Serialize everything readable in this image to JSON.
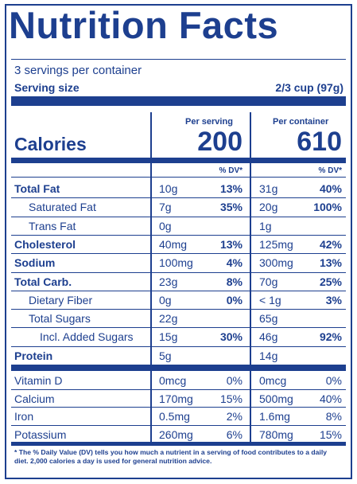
{
  "title": "Nutrition Facts",
  "servings_per_container": "3 servings per container",
  "serving_size_label": "Serving size",
  "serving_size_value": "2/3 cup (97g)",
  "calories_label": "Calories",
  "per_serving_label": "Per serving",
  "per_container_label": "Per container",
  "calories_per_serving": "200",
  "calories_per_container": "610",
  "dv_header": "% DV*",
  "nutrients": [
    {
      "name": "Total Fat",
      "bold": true,
      "indent": 0,
      "serving_amt": "10g",
      "serving_dv": "13%",
      "container_amt": "31g",
      "container_dv": "40%"
    },
    {
      "name": "Saturated Fat",
      "bold": false,
      "indent": 1,
      "serving_amt": "7g",
      "serving_dv": "35%",
      "container_amt": "20g",
      "container_dv": "100%"
    },
    {
      "name": "Trans Fat",
      "bold": false,
      "indent": 1,
      "serving_amt": "0g",
      "serving_dv": "",
      "container_amt": "1g",
      "container_dv": ""
    },
    {
      "name": "Cholesterol",
      "bold": true,
      "indent": 0,
      "serving_amt": "40mg",
      "serving_dv": "13%",
      "container_amt": "125mg",
      "container_dv": "42%"
    },
    {
      "name": "Sodium",
      "bold": true,
      "indent": 0,
      "serving_amt": "100mg",
      "serving_dv": "4%",
      "container_amt": "300mg",
      "container_dv": "13%"
    },
    {
      "name": "Total Carb.",
      "bold": true,
      "indent": 0,
      "serving_amt": "23g",
      "serving_dv": "8%",
      "container_amt": "70g",
      "container_dv": "25%"
    },
    {
      "name": "Dietary Fiber",
      "bold": false,
      "indent": 1,
      "serving_amt": "0g",
      "serving_dv": "0%",
      "container_amt": "< 1g",
      "container_dv": "3%"
    },
    {
      "name": "Total Sugars",
      "bold": false,
      "indent": 1,
      "serving_amt": "22g",
      "serving_dv": "",
      "container_amt": "65g",
      "container_dv": ""
    },
    {
      "name": "Incl. Added Sugars",
      "bold": false,
      "indent": 2,
      "serving_amt": "15g",
      "serving_dv": "30%",
      "container_amt": "46g",
      "container_dv": "92%"
    },
    {
      "name": "Protein",
      "bold": true,
      "indent": 0,
      "serving_amt": "5g",
      "serving_dv": "",
      "container_amt": "14g",
      "container_dv": ""
    }
  ],
  "vitamins": [
    {
      "name": "Vitamin D",
      "serving_amt": "0mcg",
      "serving_dv": "0%",
      "container_amt": "0mcg",
      "container_dv": "0%"
    },
    {
      "name": "Calcium",
      "serving_amt": "170mg",
      "serving_dv": "15%",
      "container_amt": "500mg",
      "container_dv": "40%"
    },
    {
      "name": "Iron",
      "serving_amt": "0.5mg",
      "serving_dv": "2%",
      "container_amt": "1.6mg",
      "container_dv": "8%"
    },
    {
      "name": "Potassium",
      "serving_amt": "260mg",
      "serving_dv": "6%",
      "container_amt": "780mg",
      "container_dv": "15%"
    }
  ],
  "footnote": "* The % Daily Value (DV) tells you how much a nutrient in a serving of food contributes to a daily diet. 2,000 calories a day is used for general nutrition advice.",
  "colors": {
    "ink": "#1d3f8f",
    "background": "#ffffff"
  }
}
